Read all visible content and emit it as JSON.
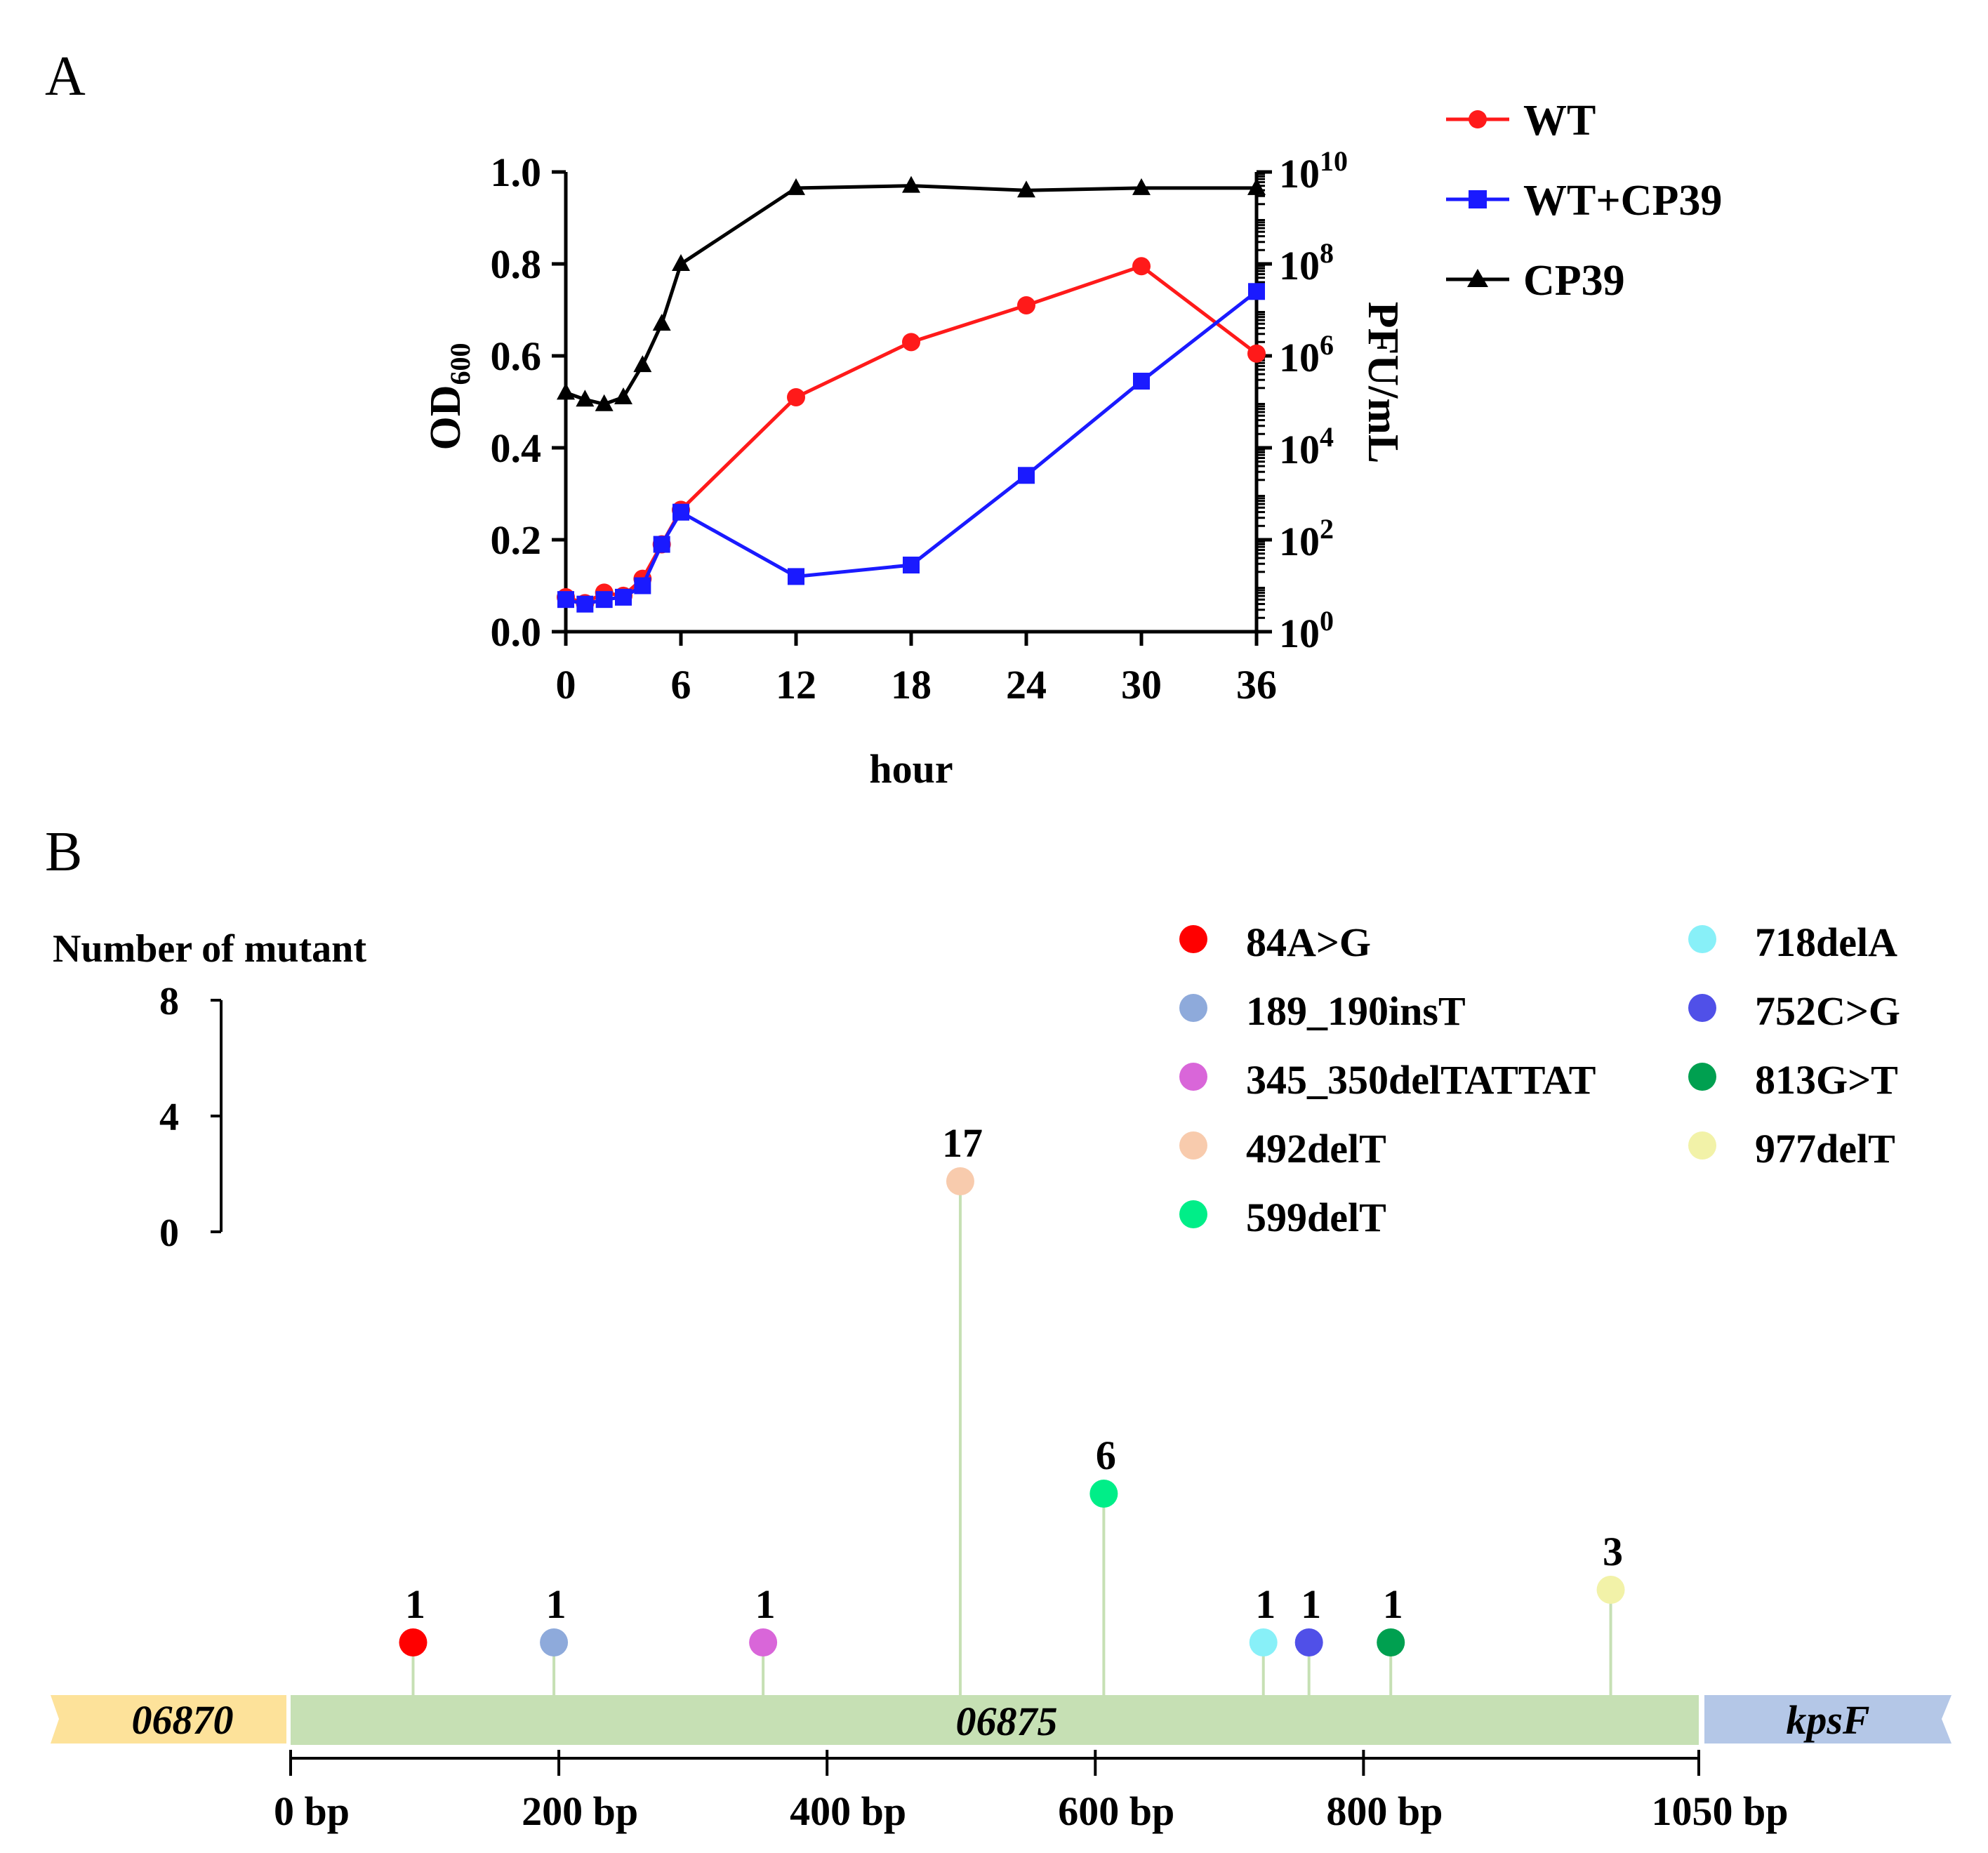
{
  "panels": {
    "a": "A",
    "b": "B"
  },
  "chart_data": [
    {
      "type": "line",
      "panel": "A",
      "xlabel": "hour",
      "ylabel": "OD",
      "ylabel_sub": "600",
      "y2label": "PFU/mL",
      "x_ticks": [
        0,
        6,
        12,
        18,
        24,
        30,
        36
      ],
      "x_tick_labels": [
        "0",
        "6",
        "12",
        "18",
        "24",
        "30",
        "36"
      ],
      "xlim": [
        0,
        36
      ],
      "y_ticks": [
        0.0,
        0.2,
        0.4,
        0.6,
        0.8,
        1.0
      ],
      "y_tick_labels": [
        "0.0",
        "0.2",
        "0.4",
        "0.6",
        "0.8",
        "1.0"
      ],
      "ylim": [
        0,
        1.0
      ],
      "y2_scale": "log10",
      "y2_ticks": [
        0,
        2,
        4,
        6,
        8,
        10
      ],
      "y2_tick_base": "10",
      "y2_tick_exponents": [
        "0",
        "2",
        "4",
        "6",
        "8",
        "10"
      ],
      "y2lim": [
        0,
        10
      ],
      "legend_position": "top-right",
      "series": [
        {
          "name": "WT",
          "axis": "left",
          "color": "#ff1a1a",
          "marker": "circle",
          "x": [
            0,
            1,
            2,
            3,
            4,
            5,
            6,
            12,
            18,
            24,
            30,
            36
          ],
          "values": [
            0.075,
            0.062,
            0.085,
            0.078,
            0.115,
            0.19,
            0.265,
            0.51,
            0.63,
            0.71,
            0.795,
            0.605
          ]
        },
        {
          "name": "WT+CP39",
          "axis": "left",
          "color": "#1a1aff",
          "marker": "square",
          "x": [
            0,
            1,
            2,
            3,
            4,
            5,
            6,
            12,
            18,
            24,
            30,
            36
          ],
          "values": [
            0.07,
            0.06,
            0.07,
            0.075,
            0.1,
            0.19,
            0.26,
            0.12,
            0.145,
            0.34,
            0.545,
            0.74
          ]
        },
        {
          "name": "CP39",
          "axis": "right",
          "color": "#000000",
          "marker": "triangle",
          "x": [
            0,
            1,
            2,
            3,
            4,
            5,
            6,
            12,
            18,
            24,
            30,
            36
          ],
          "log10_values": [
            5.2,
            5.05,
            4.95,
            5.1,
            5.8,
            6.7,
            8.0,
            9.65,
            9.7,
            9.6,
            9.65,
            9.65
          ]
        }
      ]
    },
    {
      "type": "lollipop",
      "panel": "B",
      "ylabel": "Number of mutant",
      "scale_ticks": [
        0,
        4,
        8
      ],
      "scale_tick_labels": [
        "8",
        "4",
        "0"
      ],
      "x_ticks": [
        0,
        200,
        400,
        600,
        800,
        1050
      ],
      "x_tick_labels": [
        "0 bp",
        "200 bp",
        "400 bp",
        "600 bp",
        "800 bp",
        "1050 bp"
      ],
      "xlim": [
        0,
        1050
      ],
      "genes": [
        {
          "name": "06870",
          "color": "#fde29a"
        },
        {
          "name": "06875",
          "color": "#c6e0b4"
        },
        {
          "name": "kpsF",
          "color": "#b4c7e7"
        }
      ],
      "mutations": [
        {
          "label": "84A>G",
          "position": 84,
          "count": 1,
          "count_label": "1",
          "color": "#ff0000"
        },
        {
          "label": "189_190insT",
          "position": 189,
          "count": 1,
          "count_label": "1",
          "color": "#8eaadb"
        },
        {
          "label": "345_350delTATTAT",
          "position": 345,
          "count": 1,
          "count_label": "1",
          "color": "#d966d9"
        },
        {
          "label": "492delT",
          "position": 492,
          "count": 17,
          "count_label": "17",
          "color": "#f8cbad"
        },
        {
          "label": "599delT",
          "position": 599,
          "count": 6,
          "count_label": "6",
          "color": "#00ee88"
        },
        {
          "label": "718delA",
          "position": 718,
          "count": 1,
          "count_label": "1",
          "color": "#88f0f8"
        },
        {
          "label": "752C>G",
          "position": 752,
          "count": 1,
          "count_label": "1",
          "color": "#5050e8"
        },
        {
          "label": "813G>T",
          "position": 813,
          "count": 1,
          "count_label": "1",
          "color": "#00a050"
        },
        {
          "label": "977delT",
          "position": 977,
          "count": 3,
          "count_label": "3",
          "color": "#f2f2a8"
        }
      ],
      "stem_color": "#c6e0b4",
      "legend_position": "top-right"
    }
  ]
}
